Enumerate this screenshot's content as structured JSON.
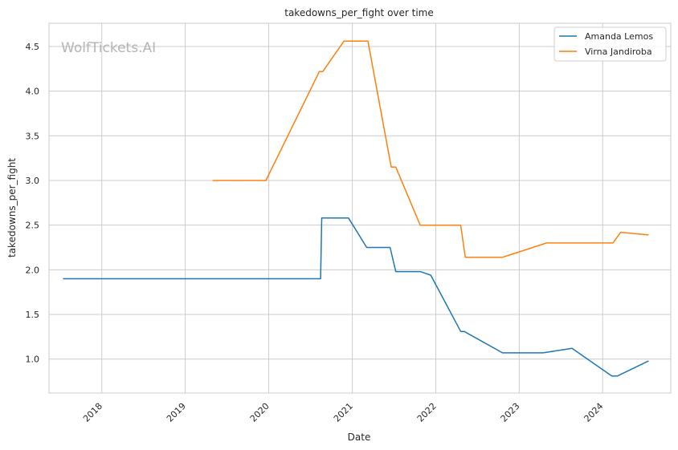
{
  "chart_data": {
    "type": "line",
    "title": "takedowns_per_fight over time",
    "xlabel": "Date",
    "ylabel": "takedowns_per_fight",
    "watermark": "WolfTickets.AI",
    "x_ticks": [
      "2018",
      "2019",
      "2020",
      "2021",
      "2022",
      "2023",
      "2024"
    ],
    "y_ticks": [
      "1.0",
      "1.5",
      "2.0",
      "2.5",
      "3.0",
      "3.5",
      "4.0",
      "4.5"
    ],
    "xlim": [
      "2017-05-15",
      "2024-10-25"
    ],
    "ylim": [
      0.62,
      4.76
    ],
    "grid": true,
    "legend_position": "upper-right",
    "series": [
      {
        "name": "Amanda Lemos",
        "color": "#1f77b4",
        "points": [
          [
            "2017-07-15",
            1.9
          ],
          [
            "2020-08-15",
            1.9
          ],
          [
            "2020-08-20",
            2.58
          ],
          [
            "2020-12-15",
            2.58
          ],
          [
            "2021-03-05",
            2.25
          ],
          [
            "2021-06-15",
            2.25
          ],
          [
            "2021-07-10",
            1.98
          ],
          [
            "2021-10-25",
            1.98
          ],
          [
            "2021-12-10",
            1.94
          ],
          [
            "2022-04-20",
            1.31
          ],
          [
            "2022-05-05",
            1.31
          ],
          [
            "2022-10-20",
            1.07
          ],
          [
            "2023-04-15",
            1.07
          ],
          [
            "2023-08-20",
            1.12
          ],
          [
            "2024-02-10",
            0.81
          ],
          [
            "2024-03-05",
            0.81
          ],
          [
            "2024-07-20",
            0.98
          ]
        ]
      },
      {
        "name": "Virna Jandiroba",
        "color": "#ff7f0e",
        "points": [
          [
            "2019-05-01",
            3.0
          ],
          [
            "2019-12-20",
            3.0
          ],
          [
            "2020-08-10",
            4.22
          ],
          [
            "2020-08-25",
            4.22
          ],
          [
            "2020-11-25",
            4.56
          ],
          [
            "2021-03-10",
            4.56
          ],
          [
            "2021-06-20",
            3.15
          ],
          [
            "2021-07-10",
            3.15
          ],
          [
            "2021-10-25",
            2.5
          ],
          [
            "2022-04-20",
            2.5
          ],
          [
            "2022-05-10",
            2.14
          ],
          [
            "2022-10-20",
            2.14
          ],
          [
            "2023-05-01",
            2.3
          ],
          [
            "2024-02-15",
            2.3
          ],
          [
            "2024-03-20",
            2.42
          ],
          [
            "2024-07-20",
            2.39
          ]
        ]
      }
    ]
  }
}
